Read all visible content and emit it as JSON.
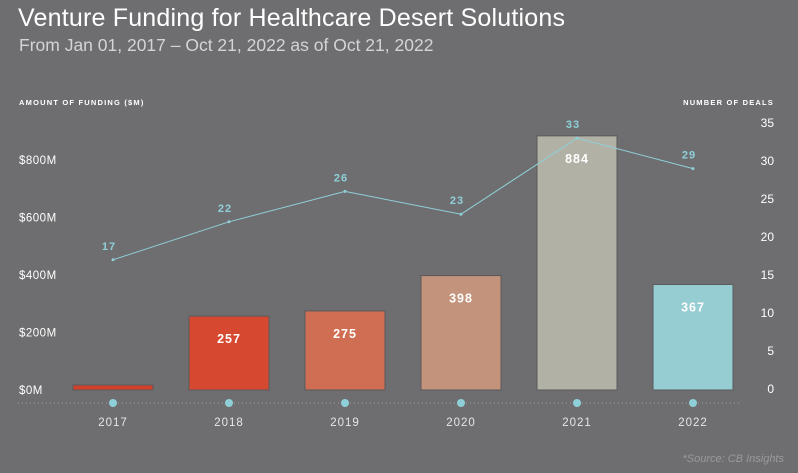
{
  "header": {
    "title": "Venture Funding for Healthcare Desert Solutions",
    "subtitle": "From Jan 01, 2017 – Oct 21, 2022 as of Oct 21, 2022"
  },
  "footer": {
    "source": "*Source: CB Insights"
  },
  "colors": {
    "background": "#6e6e70",
    "bar_2017": "#d2402a",
    "bar_2018": "#d6482f",
    "bar_2019": "#cf6e52",
    "bar_2020": "#c3937c",
    "bar_2021": "#b2b1a5",
    "bar_2022": "#96cdd3",
    "line": "#8fd0d8",
    "axis_dot": "#8fd0d8",
    "label_line": "#8fd0d8"
  },
  "chart_data": {
    "type": "bar",
    "title": "Venture Funding for Healthcare Desert Solutions",
    "subtitle": "From Jan 01, 2017 – Oct 21, 2022 as of Oct 21, 2022",
    "categories": [
      "2017",
      "2018",
      "2019",
      "2020",
      "2021",
      "2022"
    ],
    "ylabel": "AMOUNT OF FUNDING ($M)",
    "y2label": "NUMBER OF DEALS",
    "ylim": [
      0,
      1000
    ],
    "y2lim": [
      0,
      35
    ],
    "yticks": [
      "$0M",
      "$200M",
      "$400M",
      "$600M",
      "$800M"
    ],
    "yticks_values": [
      0,
      200,
      400,
      600,
      800
    ],
    "y2ticks": [
      0,
      5,
      10,
      15,
      20,
      25,
      30,
      35
    ],
    "grid": false,
    "series": [
      {
        "type": "bar",
        "axis": "left",
        "values": [
          13,
          257,
          275,
          398,
          884,
          367
        ],
        "labels": [
          "",
          "257",
          "275",
          "398",
          "884",
          "367"
        ]
      },
      {
        "type": "line",
        "axis": "right",
        "values": [
          17,
          22,
          26,
          23,
          33,
          29
        ],
        "labels": [
          "17",
          "22",
          "26",
          "23",
          "33",
          "29"
        ]
      }
    ]
  }
}
